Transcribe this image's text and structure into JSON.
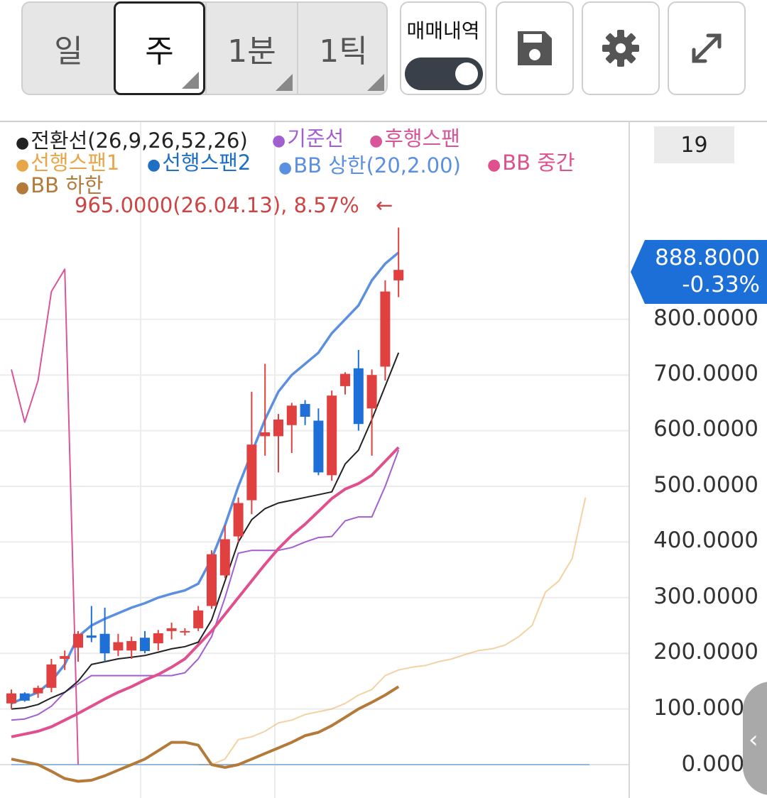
{
  "toolbar": {
    "periods": [
      "일",
      "주",
      "1분",
      "1틱"
    ],
    "active_period": "주",
    "trade_history_label": "매매내역",
    "trade_history_on": true,
    "save_icon": "save-icon",
    "settings_icon": "gear-icon",
    "fullscreen_icon": "expand-icon"
  },
  "legend": {
    "conversion": "전환선(26,9,26,52,26)",
    "base": "기준선",
    "lagging": "후행스팬",
    "leading1": "선행스팬1",
    "leading2": "선행스팬2",
    "bb_upper": "BB 상한(20,2.00)",
    "bb_middle": "BB 중간",
    "bb_lower": "BB 하한"
  },
  "colors": {
    "conversion": "#222222",
    "base": "#a25fd0",
    "lagging": "#d8559a",
    "leading1": "#e8a649",
    "leading2": "#1f6fc4",
    "bb_upper": "#5b8fe0",
    "bb_middle": "#e0508f",
    "bb_lower": "#b37a3a",
    "up": "#e04040",
    "down": "#1f6fd8"
  },
  "tooltip": {
    "high_label": "965.0000(26.04.13), 8.57%",
    "arrow": "←"
  },
  "period_count": "19",
  "current_price": {
    "value": "888.8000",
    "change": "-0.33%"
  },
  "y_axis": {
    "ticks": [
      "800.0000",
      "700.0000",
      "600.0000",
      "500.0000",
      "400.0000",
      "300.0000",
      "200.0000",
      "100.0000",
      "0.0000"
    ]
  },
  "chart_data": {
    "type": "candlestick",
    "ylim": [
      -60,
      1000
    ],
    "ticks": [
      0,
      100,
      200,
      300,
      400,
      500,
      600,
      700,
      800
    ],
    "candles": [
      {
        "o": 110,
        "h": 135,
        "l": 100,
        "c": 128
      },
      {
        "o": 128,
        "h": 130,
        "l": 113,
        "c": 115
      },
      {
        "o": 128,
        "h": 142,
        "l": 120,
        "c": 138
      },
      {
        "o": 138,
        "h": 190,
        "l": 130,
        "c": 180
      },
      {
        "o": 190,
        "h": 205,
        "l": 170,
        "c": 195
      },
      {
        "o": 210,
        "h": 240,
        "l": 185,
        "c": 235
      },
      {
        "o": 232,
        "h": 285,
        "l": 220,
        "c": 228
      },
      {
        "o": 235,
        "h": 282,
        "l": 185,
        "c": 200
      },
      {
        "o": 205,
        "h": 235,
        "l": 195,
        "c": 220
      },
      {
        "o": 205,
        "h": 230,
        "l": 190,
        "c": 222
      },
      {
        "o": 228,
        "h": 240,
        "l": 200,
        "c": 204
      },
      {
        "o": 218,
        "h": 242,
        "l": 205,
        "c": 236
      },
      {
        "o": 240,
        "h": 255,
        "l": 225,
        "c": 245
      },
      {
        "o": 240,
        "h": 245,
        "l": 232,
        "c": 240
      },
      {
        "o": 245,
        "h": 285,
        "l": 240,
        "c": 277
      },
      {
        "o": 285,
        "h": 385,
        "l": 280,
        "c": 378
      },
      {
        "o": 340,
        "h": 430,
        "l": 335,
        "c": 405
      },
      {
        "o": 410,
        "h": 480,
        "l": 400,
        "c": 470
      },
      {
        "o": 475,
        "h": 670,
        "l": 450,
        "c": 575
      },
      {
        "o": 590,
        "h": 720,
        "l": 555,
        "c": 597
      },
      {
        "o": 590,
        "h": 630,
        "l": 525,
        "c": 620
      },
      {
        "o": 610,
        "h": 650,
        "l": 560,
        "c": 645
      },
      {
        "o": 648,
        "h": 655,
        "l": 610,
        "c": 625
      },
      {
        "o": 618,
        "h": 640,
        "l": 520,
        "c": 525
      },
      {
        "o": 520,
        "h": 672,
        "l": 510,
        "c": 663
      },
      {
        "o": 680,
        "h": 705,
        "l": 665,
        "c": 702
      },
      {
        "o": 712,
        "h": 745,
        "l": 600,
        "c": 612
      },
      {
        "o": 640,
        "h": 710,
        "l": 555,
        "c": 700
      },
      {
        "o": 715,
        "h": 870,
        "l": 690,
        "c": 850
      },
      {
        "o": 870,
        "h": 965,
        "l": 840,
        "c": 888.8
      }
    ],
    "series": {
      "conversion": [
        100,
        102,
        108,
        120,
        130,
        150,
        180,
        185,
        190,
        193,
        196,
        202,
        208,
        212,
        220,
        260,
        330,
        400,
        440,
        460,
        470,
        475,
        480,
        485,
        490,
        540,
        565,
        620,
        680,
        740
      ],
      "base": [
        80,
        82,
        90,
        105,
        130,
        145,
        160,
        160,
        160,
        160,
        160,
        160,
        160,
        165,
        190,
        230,
        300,
        380,
        385,
        385,
        385,
        390,
        400,
        408,
        410,
        438,
        445,
        445,
        500,
        565
      ],
      "lagging": [
        710,
        615,
        690,
        850,
        890,
        0
      ],
      "leading1": [
        0,
        0,
        10,
        45,
        50,
        60,
        75,
        80,
        90,
        95,
        100,
        110,
        125,
        135,
        160,
        170,
        175,
        178,
        185,
        190,
        198,
        205,
        208,
        215,
        230,
        250,
        310,
        330,
        370,
        480
      ],
      "leading2": [
        0,
        0,
        0,
        0,
        0,
        0,
        0,
        0,
        0,
        0,
        0,
        0,
        0,
        0,
        0,
        0,
        0,
        0,
        0,
        0
      ],
      "bb_upper": [
        110,
        120,
        130,
        150,
        180,
        230,
        250,
        262,
        272,
        282,
        290,
        300,
        307,
        313,
        325,
        370,
        430,
        500,
        560,
        620,
        670,
        700,
        720,
        740,
        775,
        800,
        825,
        870,
        900,
        920
      ],
      "bb_middle": [
        50,
        55,
        60,
        68,
        80,
        92,
        105,
        118,
        130,
        140,
        152,
        162,
        175,
        190,
        215,
        240,
        270,
        300,
        330,
        360,
        388,
        412,
        432,
        455,
        478,
        495,
        505,
        520,
        545,
        570
      ],
      "bb_lower": [
        10,
        5,
        0,
        -12,
        -25,
        -30,
        -28,
        -20,
        -10,
        0,
        10,
        25,
        40,
        40,
        35,
        0,
        -5,
        0,
        10,
        20,
        30,
        40,
        52,
        58,
        70,
        85,
        100,
        112,
        125,
        140
      ]
    }
  }
}
